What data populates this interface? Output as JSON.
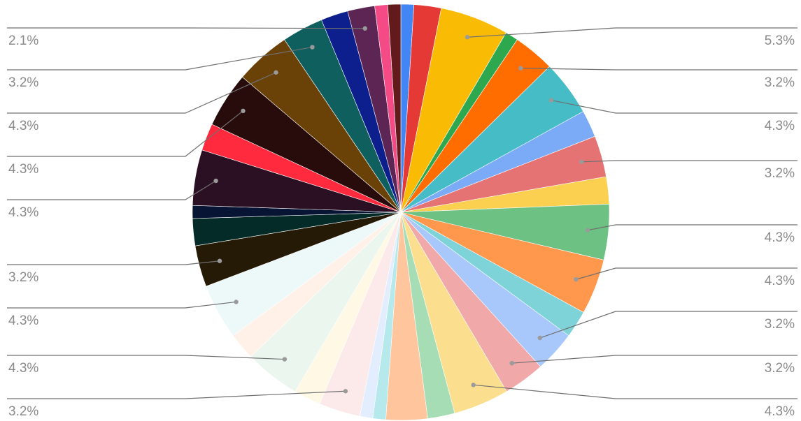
{
  "chart_data": {
    "type": "pie",
    "title": "",
    "legend": "none",
    "slices": [
      {
        "color": "#4285F4",
        "value": 1.0
      },
      {
        "color": "#E53935",
        "value": 2.1
      },
      {
        "color": "#F9BB04",
        "value": 5.3,
        "label": "5.3%"
      },
      {
        "color": "#2EA84F",
        "value": 1.0
      },
      {
        "color": "#FF6D00",
        "value": 3.2,
        "label": "3.2%"
      },
      {
        "color": "#46BDC6",
        "value": 4.3,
        "label": "4.3%"
      },
      {
        "color": "#7BAAF7",
        "value": 2.1
      },
      {
        "color": "#E67373",
        "value": 3.2,
        "label": "3.2%"
      },
      {
        "color": "#FBCF4F",
        "value": 2.1
      },
      {
        "color": "#6CC183",
        "value": 4.3,
        "label": "4.3%"
      },
      {
        "color": "#FF984D",
        "value": 4.3,
        "label": "4.3%"
      },
      {
        "color": "#7DD3D8",
        "value": 2.1
      },
      {
        "color": "#A8C7FA",
        "value": 3.2,
        "label": "3.2%"
      },
      {
        "color": "#F0A8A8",
        "value": 3.2,
        "label": "3.2%"
      },
      {
        "color": "#FBDF8F",
        "value": 4.3,
        "label": "4.3%"
      },
      {
        "color": "#A7DDB5",
        "value": 2.1
      },
      {
        "color": "#FFC59D",
        "value": 3.2
      },
      {
        "color": "#B5E9EC",
        "value": 1.0
      },
      {
        "color": "#E2EDFD",
        "value": 1.0
      },
      {
        "color": "#FCE9E9",
        "value": 3.2,
        "label": "3.2%"
      },
      {
        "color": "#FEF8E5",
        "value": 2.1
      },
      {
        "color": "#EAF6EE",
        "value": 4.3,
        "label": "4.3%"
      },
      {
        "color": "#FFF1E8",
        "value": 2.1
      },
      {
        "color": "#EDF8F9",
        "value": 4.3,
        "label": "4.3%"
      },
      {
        "color": "#241A05",
        "value": 3.2,
        "label": "3.2%"
      },
      {
        "color": "#042B27",
        "value": 2.1
      },
      {
        "color": "#081434",
        "value": 1.0
      },
      {
        "color": "#2B0F22",
        "value": 4.3,
        "label": "4.3%"
      },
      {
        "color": "#FF2A3E",
        "value": 2.1
      },
      {
        "color": "#280B0B",
        "value": 4.3,
        "label": "4.3%"
      },
      {
        "color": "#6A4208",
        "value": 4.3,
        "label": "4.3%"
      },
      {
        "color": "#0F5F5F",
        "value": 3.2,
        "label": "3.2%"
      },
      {
        "color": "#0C1F8C",
        "value": 2.1
      },
      {
        "color": "#5C2554",
        "value": 2.1,
        "label": "2.1%"
      },
      {
        "color": "#F44B86",
        "value": 1.0
      },
      {
        "color": "#621A1A",
        "value": 1.0
      }
    ]
  }
}
